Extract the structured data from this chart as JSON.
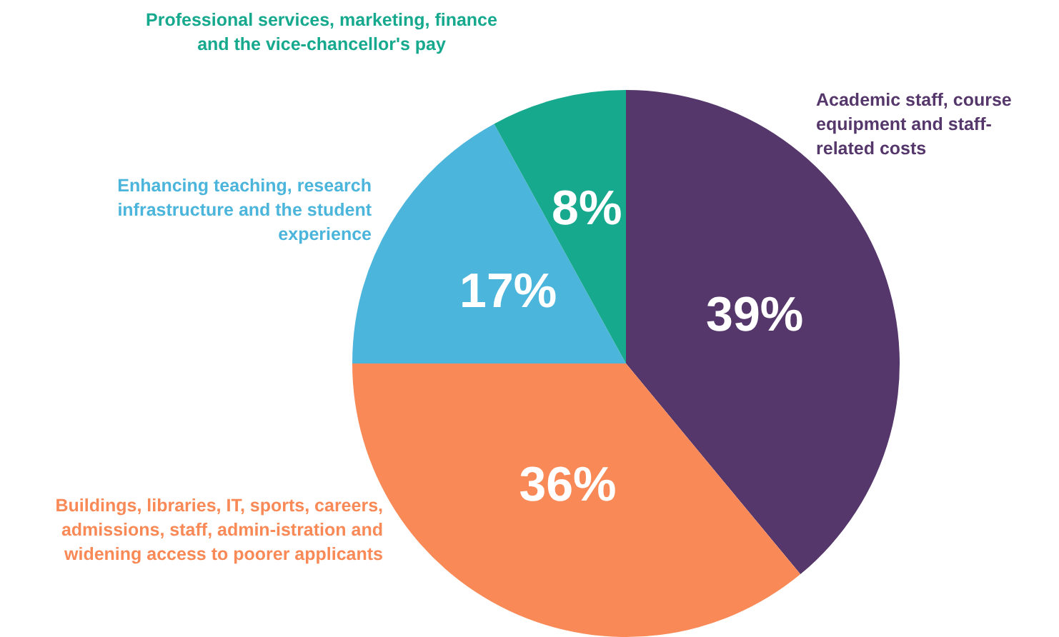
{
  "chart_data": {
    "type": "pie",
    "categories": [
      "Academic staff, course equipment and staff-related costs",
      "Buildings, libraries, IT, sports, careers, admissions, staff, admin-istration and widening access to poorer applicants",
      "Enhancing teaching, research infrastructure and the student experience",
      "Professional services, marketing, finance and the vice-chancellor's pay"
    ],
    "values": [
      39,
      36,
      17,
      8
    ],
    "colors": [
      "#55376b",
      "#f98a57",
      "#4cb5dc",
      "#16a98e"
    ],
    "value_labels": [
      "39%",
      "36%",
      "17%",
      "8%"
    ],
    "legend": false
  }
}
